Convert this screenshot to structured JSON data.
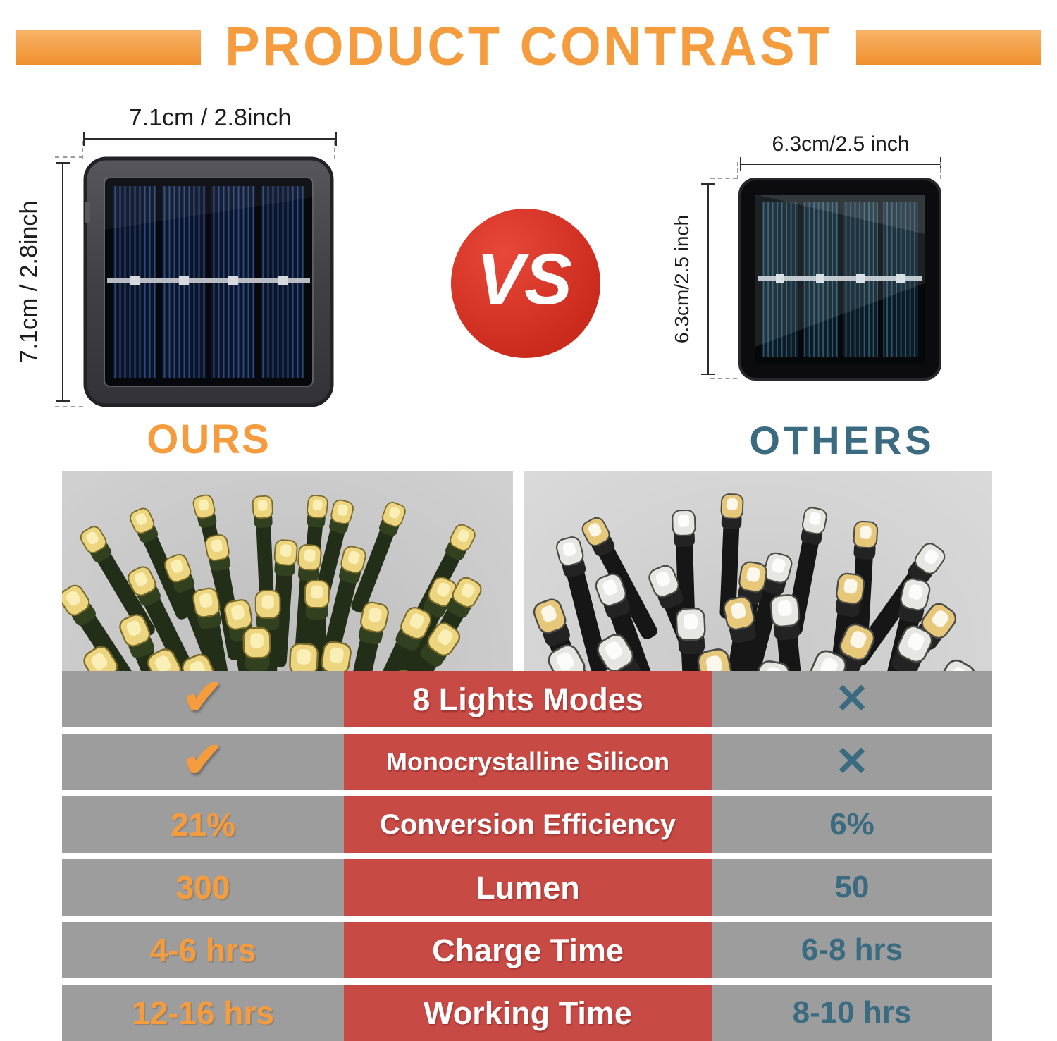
{
  "header": {
    "title": "PRODUCT CONTRAST"
  },
  "ours": {
    "label": "OURS",
    "width_label": "7.1cm / 2.8inch",
    "height_label": "7.1cm / 2.8inch"
  },
  "vs": {
    "label": "VS"
  },
  "others": {
    "label": "OTHERS",
    "width_label": "6.3cm/2.5 inch",
    "height_label": "6.3cm/2.5 inch"
  },
  "table": {
    "check_glyph": "✔",
    "cross_glyph": "✕",
    "rows": [
      {
        "feature": "8 Lights Modes",
        "ours": "check",
        "others": "cross"
      },
      {
        "feature": "Monocrystalline Silicon",
        "ours": "check",
        "others": "cross"
      },
      {
        "feature": "Conversion Efficiency",
        "ours": "21%",
        "others": "6%"
      },
      {
        "feature": "Lumen",
        "ours": "300",
        "others": "50"
      },
      {
        "feature": "Charge Time",
        "ours": "4-6 hrs",
        "others": "6-8 hrs"
      },
      {
        "feature": "Working Time",
        "ours": "12-16 hrs",
        "others": "8-10 hrs"
      }
    ]
  },
  "colors": {
    "orange": "#F49C3E",
    "red_badge": "#CB2B1D",
    "table_red": "#C74A45",
    "teal": "#3A6B80",
    "row_gray": "#9D9D9D"
  }
}
